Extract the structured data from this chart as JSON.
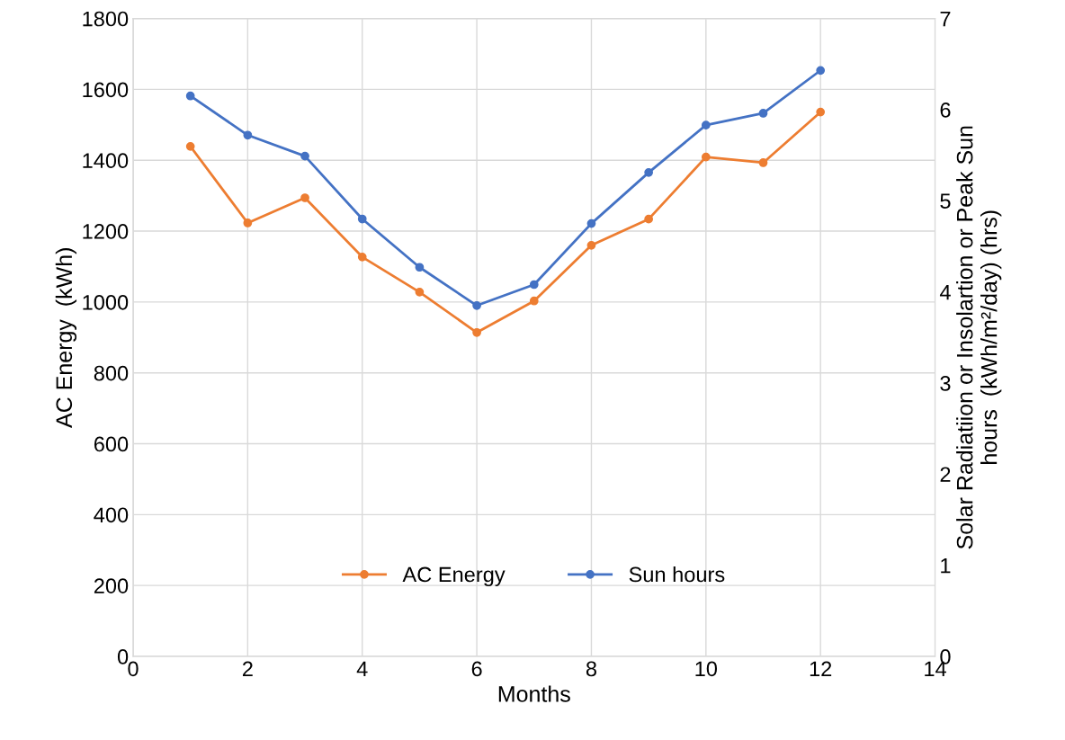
{
  "chart_data": {
    "type": "line",
    "xlabel": "Months",
    "ylabel": "AC Energy  (kWh)",
    "y2label": "Solar Radiatiion or Insolartion or Peak Sun\nhours  (kWh/m²/day) (hrs)",
    "x": [
      1,
      2,
      3,
      4,
      5,
      6,
      7,
      8,
      9,
      10,
      11,
      12
    ],
    "series": [
      {
        "name": "AC Energy",
        "color": "#ed7d31",
        "values": [
          1439,
          1223,
          1294,
          1127,
          1028,
          914,
          1003,
          1160,
          1234,
          1409,
          1393,
          1536
        ]
      },
      {
        "name": "Sun hours",
        "color": "#4472c4",
        "axis": "y2",
        "values": [
          6.15,
          5.72,
          5.49,
          4.8,
          4.27,
          3.85,
          4.08,
          4.75,
          5.31,
          5.83,
          5.96,
          6.43
        ]
      }
    ],
    "xlim": [
      0,
      14
    ],
    "xticks": [
      0,
      2,
      4,
      6,
      8,
      10,
      12,
      14
    ],
    "ylim": [
      0,
      1800
    ],
    "yticks": [
      0,
      200,
      400,
      600,
      800,
      1000,
      1200,
      1400,
      1600,
      1800
    ],
    "y2lim": [
      0,
      7
    ],
    "y2ticks": [
      0,
      1,
      2,
      3,
      4,
      5,
      6,
      7
    ],
    "grid": true,
    "legend": "bottom",
    "marker": "circle",
    "line_style": "solid"
  }
}
